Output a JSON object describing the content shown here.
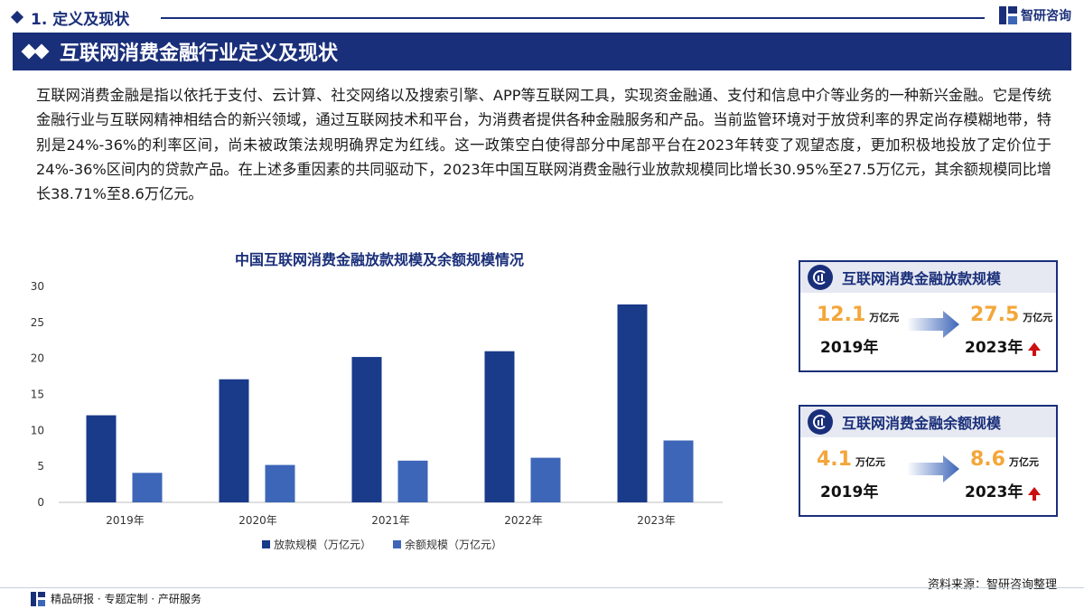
{
  "section": {
    "title": "1. 定义及现状"
  },
  "brand": {
    "name": "智研咨询"
  },
  "banner": {
    "title": "互联网消费金融行业定义及现状"
  },
  "paragraph": "互联网消费金融是指以依托于支付、云计算、社交网络以及搜索引擎、APP等互联网工具，实现资金融通、支付和信息中介等业务的一种新兴金融。它是传统金融行业与互联网精神相结合的新兴领域，通过互联网技术和平台，为消费者提供各种金融服务和产品。当前监管环境对于放贷利率的界定尚存模糊地带，特别是24%-36%的利率区间，尚未被政策法规明确界定为红线。这一政策空白使得部分中尾部平台在2023年转变了观望态度，更加积极地投放了定价位于24%-36%区间内的贷款产品。在上述多重因素的共同驱动下，2023年中国互联网消费金融行业放款规模同比增长30.95%至27.5万亿元，其余额规模同比增长38.71%至8.6万亿元。",
  "chart_data": {
    "type": "bar",
    "title": "中国互联网消费金融放款规模及余额规模情况",
    "categories": [
      "2019年",
      "2020年",
      "2021年",
      "2022年",
      "2023年"
    ],
    "series": [
      {
        "name": "放款规模（万亿元）",
        "values": [
          12.1,
          17.1,
          20.2,
          21.0,
          27.5
        ],
        "color": "#1a3a8a"
      },
      {
        "name": "余额规模（万亿元）",
        "values": [
          4.1,
          5.2,
          5.8,
          6.2,
          8.6
        ],
        "color": "#3d66b8"
      }
    ],
    "ylim": [
      0,
      30
    ],
    "yticks": [
      "0",
      "5",
      "10",
      "15",
      "20",
      "25",
      "30"
    ],
    "grid": false,
    "legend": "bottom"
  },
  "cards": [
    {
      "title": "互联网消费金融放款规模",
      "from_value": "12.1",
      "from_unit": "万亿元",
      "from_year": "2019年",
      "to_value": "27.5",
      "to_unit": "万亿元",
      "to_year": "2023年"
    },
    {
      "title": "互联网消费金融余额规模",
      "from_value": "4.1",
      "from_unit": "万亿元",
      "from_year": "2019年",
      "to_value": "8.6",
      "to_unit": "万亿元",
      "to_year": "2023年"
    }
  ],
  "source": "资料来源：智研咨询整理",
  "footer": "精品研报 · 专题定制 · 产研服务"
}
